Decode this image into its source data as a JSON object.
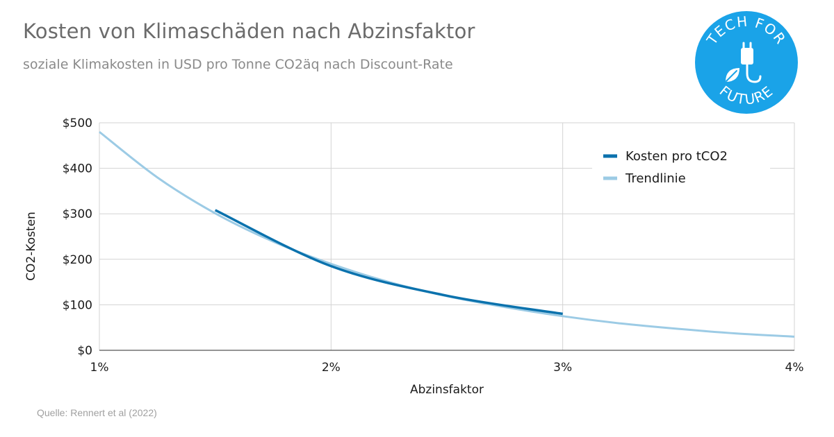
{
  "header": {
    "title": "Kosten von Klimaschäden nach Abzinsfaktor",
    "subtitle": "soziale Klimakosten in USD pro Tonne CO2äq nach Discount-Rate"
  },
  "footer": {
    "source": "Quelle: Rennert et al (2022)"
  },
  "logo": {
    "text_top": "TECH FOR",
    "text_bottom": "FUTURE",
    "color": "#1aa3e8",
    "icon": "plug-leaf-icon"
  },
  "chart_data": {
    "type": "line",
    "title": "Kosten von Klimaschäden nach Abzinsfaktor",
    "subtitle": "soziale Klimakosten in USD pro Tonne CO2äq nach Discount-Rate",
    "xlabel": "Abzinsfaktor",
    "ylabel": "CO2-Kosten",
    "xlim": [
      1,
      4
    ],
    "ylim": [
      0,
      500
    ],
    "x_ticks": [
      1,
      2,
      3,
      4
    ],
    "x_tick_labels": [
      "1%",
      "2%",
      "3%",
      "4%"
    ],
    "y_ticks": [
      0,
      100,
      200,
      300,
      400,
      500
    ],
    "y_tick_labels": [
      "$0",
      "$100",
      "$200",
      "$300",
      "$400",
      "$500"
    ],
    "grid": true,
    "legend_position": "top-right",
    "series": [
      {
        "name": "Kosten pro tCO2",
        "color": "#0b72ad",
        "x": [
          1.5,
          2.0,
          2.5,
          3.0
        ],
        "y": [
          308,
          185,
          120,
          80
        ]
      },
      {
        "name": "Trendlinie",
        "color": "#9ccbe5",
        "x": [
          1.0,
          1.25,
          1.5,
          1.75,
          2.0,
          2.25,
          2.5,
          2.75,
          3.0,
          3.25,
          3.5,
          3.75,
          4.0
        ],
        "y": [
          480,
          380,
          301,
          239,
          190,
          150,
          119,
          95,
          75,
          59,
          47,
          37,
          30
        ]
      }
    ]
  }
}
